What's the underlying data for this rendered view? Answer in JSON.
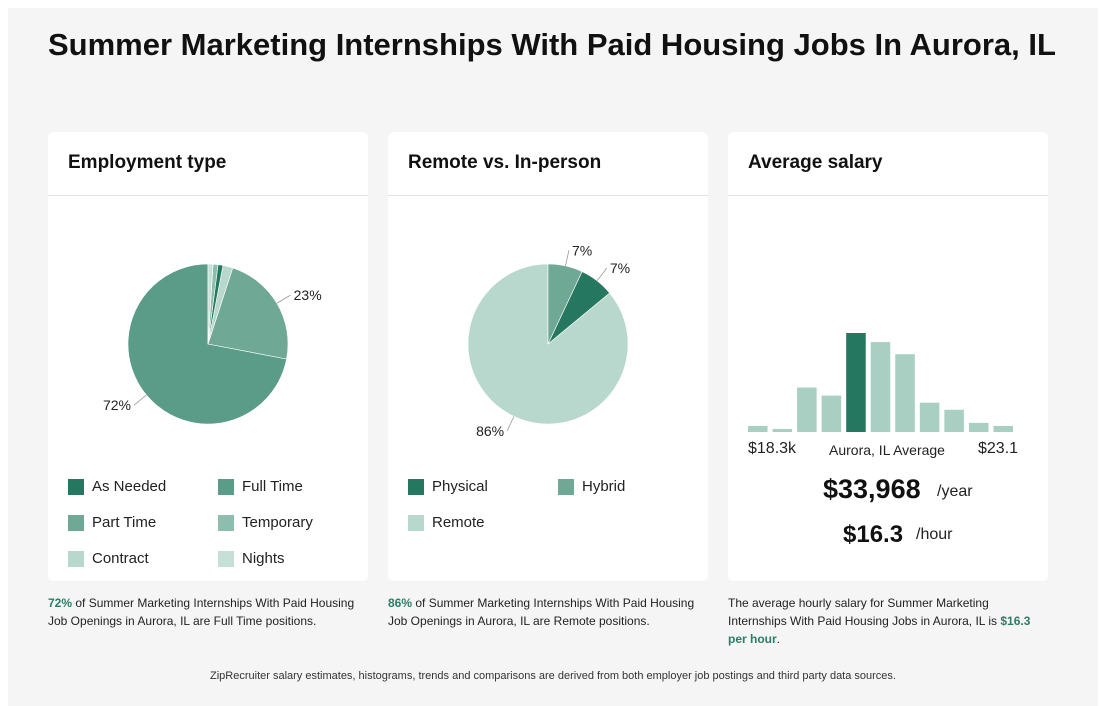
{
  "page": {
    "title": "Summer Marketing Internships With Paid Housing Jobs In Aurora, IL",
    "footer": "ZipRecruiter salary estimates, histograms, trends and comparisons are derived from both employer job postings and third party data sources."
  },
  "colors": {
    "dark": "#26775f",
    "mid": "#5a9c87",
    "mid2": "#6fa996",
    "light2": "#8cbdad",
    "light": "#b9d8cd",
    "pale": "#c6e0d7"
  },
  "employment": {
    "title": "Employment type",
    "caption_pct": "72%",
    "caption_rest": " of Summer Marketing Internships With Paid Housing Job Openings in Aurora, IL are Full Time positions.",
    "chart_data": {
      "type": "pie",
      "slices": [
        {
          "name": "Full Time",
          "value": 72,
          "color": "#5a9c87",
          "label": "72%"
        },
        {
          "name": "Part Time",
          "value": 23,
          "color": "#6fa996",
          "label": "23%"
        },
        {
          "name": "Contract",
          "value": 2,
          "color": "#b9d8cd",
          "label": ""
        },
        {
          "name": "As Needed",
          "value": 1,
          "color": "#26775f",
          "label": ""
        },
        {
          "name": "Temporary",
          "value": 1,
          "color": "#8cbdad",
          "label": ""
        },
        {
          "name": "Nights",
          "value": 1,
          "color": "#c6e0d7",
          "label": ""
        }
      ]
    },
    "legend": [
      {
        "label": "As Needed",
        "color": "#26775f"
      },
      {
        "label": "Full Time",
        "color": "#5a9c87"
      },
      {
        "label": "Part Time",
        "color": "#6fa996"
      },
      {
        "label": "Temporary",
        "color": "#8cbdad"
      },
      {
        "label": "Contract",
        "color": "#b9d8cd"
      },
      {
        "label": "Nights",
        "color": "#c6e0d7"
      }
    ]
  },
  "remote": {
    "title": "Remote vs. In-person",
    "caption_pct": "86%",
    "caption_rest": " of Summer Marketing Internships With Paid Housing Job Openings in Aurora, IL are Remote positions.",
    "chart_data": {
      "type": "pie",
      "slices": [
        {
          "name": "Remote",
          "value": 86,
          "color": "#b9d8cd",
          "label": "86%"
        },
        {
          "name": "Physical",
          "value": 7,
          "color": "#26775f",
          "label": "7%"
        },
        {
          "name": "Hybrid",
          "value": 7,
          "color": "#6fa996",
          "label": "7%"
        }
      ]
    },
    "legend": [
      {
        "label": "Physical",
        "color": "#26775f"
      },
      {
        "label": "Hybrid",
        "color": "#6fa996"
      },
      {
        "label": "Remote",
        "color": "#b9d8cd"
      }
    ]
  },
  "salary": {
    "title": "Average salary",
    "min_label": "$18.3k",
    "mid_label": "Aurora, IL Average",
    "max_label": "$23.1",
    "yearly": "$33,968",
    "yearly_unit": "/year",
    "hourly": "$16.3",
    "hourly_unit": "/hour",
    "caption_text": "The average hourly salary for Summer Marketing Internships With Paid Housing Jobs in Aurora, IL is ",
    "caption_value": "$16.3 per hour",
    "caption_end": ".",
    "chart_data": {
      "type": "bar",
      "values": [
        8,
        5,
        46,
        38,
        100,
        91,
        79,
        31,
        24,
        11,
        8
      ],
      "highlight_index": 4,
      "bar_color": "#a9cfc2",
      "highlight_color": "#26775f"
    }
  }
}
